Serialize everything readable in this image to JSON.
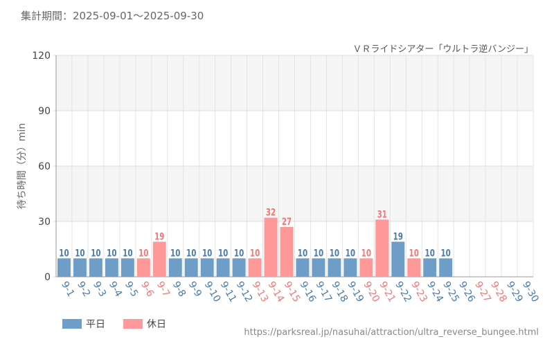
{
  "header": {
    "period": "集計期間：2025-09-01～2025-09-30",
    "title": "ＶＲライドシアター「ウルトラ逆バンジー」",
    "source_url": "https://parksreal.jp/nasuhai/attraction/ultra_reverse_bungee.html"
  },
  "legend": {
    "weekday_label": "平日",
    "holiday_label": "休日"
  },
  "colors": {
    "weekday": "#6e9dc8",
    "holiday": "#ff9999",
    "weekday_text": "#4a7cab",
    "holiday_text": "#f07878"
  },
  "chart_data": {
    "type": "bar",
    "title": "ＶＲライドシアター「ウルトラ逆バンジー」",
    "xlabel": "",
    "ylabel": "待ち時間（分）min",
    "ylim": [
      0,
      120
    ],
    "yticks": [
      0,
      30,
      60,
      90,
      120
    ],
    "grid": true,
    "legend_position": "bottom-left",
    "categories": [
      "9-1",
      "9-2",
      "9-3",
      "9-4",
      "9-5",
      "9-6",
      "9-7",
      "9-8",
      "9-9",
      "9-10",
      "9-11",
      "9-12",
      "9-13",
      "9-14",
      "9-15",
      "9-16",
      "9-17",
      "9-18",
      "9-19",
      "9-20",
      "9-21",
      "9-22",
      "9-23",
      "9-24",
      "9-25",
      "9-26",
      "9-27",
      "9-28",
      "9-29",
      "9-30"
    ],
    "values": [
      10,
      10,
      10,
      10,
      10,
      10,
      19,
      10,
      10,
      10,
      10,
      10,
      10,
      32,
      27,
      10,
      10,
      10,
      10,
      10,
      31,
      19,
      10,
      10,
      10,
      null,
      null,
      null,
      null,
      null
    ],
    "day_type": [
      "weekday",
      "weekday",
      "weekday",
      "weekday",
      "weekday",
      "holiday",
      "holiday",
      "weekday",
      "weekday",
      "weekday",
      "weekday",
      "weekday",
      "holiday",
      "holiday",
      "holiday",
      "weekday",
      "weekday",
      "weekday",
      "weekday",
      "holiday",
      "holiday",
      "weekday",
      "holiday",
      "weekday",
      "weekday",
      "weekday",
      "holiday",
      "holiday",
      "weekday",
      "weekday"
    ],
    "series": [
      {
        "name": "平日",
        "key": "weekday"
      },
      {
        "name": "休日",
        "key": "holiday"
      }
    ]
  }
}
